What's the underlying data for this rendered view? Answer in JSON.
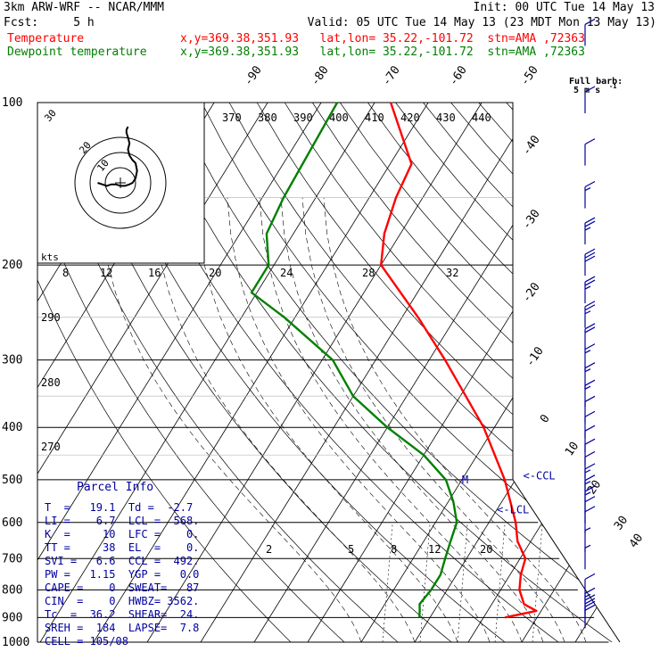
{
  "header": {
    "line1_left": "3km ARW-WRF -- NCAR/MMM",
    "line1_right": "Init: 00 UTC Tue 14 May 13",
    "line2_left": "Fcst:     5 h",
    "line2_right": "Valid: 05 UTC Tue 14 May 13 (23 MDT Mon 13 May 13)",
    "temp_label": "Temperature",
    "temp_info": "x,y=369.38,351.93   lat,lon= 35.22,-101.72  stn=AMA ,72363",
    "dew_label": "Dewpoint temperature",
    "dew_info": "x,y=369.38,351.93   lat,lon= 35.22,-101.72  stn=AMA ,72363"
  },
  "colors": {
    "temperature": "#ff0000",
    "dewpoint": "#008000",
    "parcel_text": "#0000a0",
    "wind": "#0000a0"
  },
  "full_barb_label_1": "Full barb:",
  "full_barb_label_2": "5 m s",
  "full_barb_exp": "-1",
  "hodograph_unit": "kts",
  "hodograph_ring_labels": [
    "10",
    "20",
    "30"
  ],
  "chart_data": {
    "type": "line",
    "skewt": true,
    "pressure_levels": [
      100,
      200,
      300,
      400,
      500,
      600,
      700,
      800,
      900,
      1000
    ],
    "pressure_labels": [
      "100",
      "200",
      "300",
      "400",
      "500",
      "600",
      "700",
      "800",
      "900",
      "1000"
    ],
    "isotherm_labels": [
      "-90",
      "-80",
      "-70",
      "-60",
      "-50",
      "-40",
      "-30",
      "-20",
      "-10",
      "0",
      "10",
      "20",
      "30",
      "40"
    ],
    "theta_e_labels": [
      "370",
      "380",
      "390",
      "400",
      "410",
      "420",
      "430",
      "440"
    ],
    "dry_adiabat_labels": [
      "290",
      "280",
      "270"
    ],
    "mixing_ratio_top_labels": [
      "8",
      "12",
      "16",
      "20",
      "24",
      "28",
      "32"
    ],
    "mixing_ratio_bottom_labels": [
      "2",
      "5",
      "8",
      "12",
      "20"
    ],
    "series": [
      {
        "name": "Temperature",
        "p": [
          100,
          130,
          150,
          175,
          200,
          250,
          300,
          400,
          500,
          600,
          650,
          700,
          750,
          800,
          850,
          875,
          900
        ],
        "t": [
          -67,
          -56,
          -55,
          -53,
          -50,
          -37,
          -27,
          -12,
          -2,
          5,
          7.5,
          11,
          12,
          13.5,
          16,
          19.1,
          14
        ]
      },
      {
        "name": "Dewpoint temperature",
        "p": [
          100,
          150,
          175,
          200,
          225,
          250,
          300,
          350,
          400,
          450,
          500,
          550,
          600,
          650,
          700,
          750,
          800,
          850,
          875,
          900
        ],
        "t": [
          -77,
          -76,
          -75,
          -71,
          -71,
          -62,
          -48,
          -40,
          -30,
          -20,
          -13,
          -9,
          -6,
          -5,
          -4,
          -3,
          -3,
          -3.5,
          -2.7,
          -2
        ]
      }
    ],
    "annotations": [
      {
        "text": "M",
        "p": 500,
        "t": -10
      },
      {
        "text": "<-CCL",
        "p": 492,
        "t": 1
      },
      {
        "text": "<-LCL",
        "p": 568,
        "t": 0
      }
    ],
    "hodograph": {
      "u": [
        -15,
        -12,
        -9,
        -6,
        -3,
        0,
        3,
        6,
        8,
        10,
        11,
        10,
        8,
        6,
        5,
        6,
        5,
        4,
        4,
        5
      ],
      "v": [
        0,
        -1,
        -2,
        -1,
        -1,
        -2,
        -2,
        -1,
        0,
        3,
        8,
        13,
        15,
        18,
        22,
        26,
        30,
        33,
        35,
        37
      ]
    },
    "wind_barbs": [
      {
        "p": 75,
        "speed": 10
      },
      {
        "p": 100,
        "speed": 10
      },
      {
        "p": 125,
        "speed": 10
      },
      {
        "p": 150,
        "speed": 15
      },
      {
        "p": 175,
        "speed": 25
      },
      {
        "p": 200,
        "speed": 30
      },
      {
        "p": 225,
        "speed": 25
      },
      {
        "p": 250,
        "speed": 25
      },
      {
        "p": 275,
        "speed": 20
      },
      {
        "p": 300,
        "speed": 15
      },
      {
        "p": 325,
        "speed": 15
      },
      {
        "p": 350,
        "speed": 15
      },
      {
        "p": 375,
        "speed": 10
      },
      {
        "p": 400,
        "speed": 10
      },
      {
        "p": 425,
        "speed": 10
      },
      {
        "p": 450,
        "speed": 10
      },
      {
        "p": 475,
        "speed": 10
      },
      {
        "p": 500,
        "speed": 15
      },
      {
        "p": 525,
        "speed": 15
      },
      {
        "p": 550,
        "speed": 15
      },
      {
        "p": 575,
        "speed": 10
      },
      {
        "p": 600,
        "speed": 10
      },
      {
        "p": 650,
        "speed": 5
      },
      {
        "p": 700,
        "speed": 5
      },
      {
        "p": 800,
        "speed": 10
      },
      {
        "p": 850,
        "speed": 15
      },
      {
        "p": 875,
        "speed": 20
      },
      {
        "p": 900,
        "speed": 20
      }
    ]
  },
  "parcel": {
    "title": "Parcel Info",
    "rows": [
      "T  =   19.1  Td =  -2.7",
      "LI =    6.7  LCL =  568.",
      "K  =     10  LFC =    0.",
      "TT =     38  EL  =    0.",
      "SVI =   6.6  CCL =  492.",
      "PW =   1.15  YGP =   0.0",
      "CAPE =    0  SWEAT=   87",
      "CIN  =    0  HWBZ= 3562.",
      "Tc  =  36.2  SHEAR=  24.",
      "SREH =  184  LAPSE=  7.8",
      "CELL = 105/08"
    ]
  }
}
